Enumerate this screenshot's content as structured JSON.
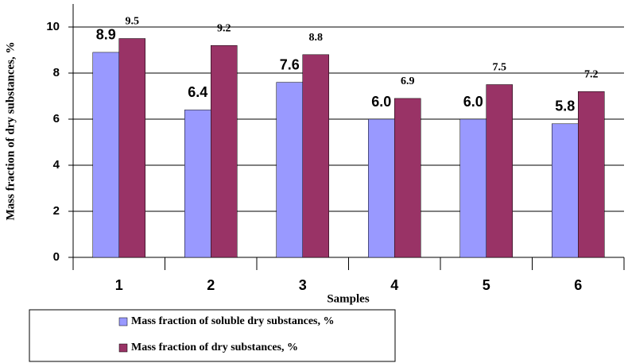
{
  "chart_data": {
    "type": "bar",
    "x_label": "Samples",
    "y_label": "Mass fraction of dry substances, %",
    "categories": [
      "1",
      "2",
      "3",
      "4",
      "5",
      "6"
    ],
    "series": [
      {
        "name": "Mass fraction of soluble dry substances, %",
        "color": "#9999ff",
        "values": [
          8.9,
          6.4,
          7.6,
          6.0,
          6.0,
          5.8
        ],
        "value_labels": [
          "8.9",
          "6.4",
          "7.6",
          "6.0",
          "6.0",
          "5.8"
        ]
      },
      {
        "name": "Mass fraction of dry substances, %",
        "color": "#993366",
        "values": [
          9.5,
          9.2,
          8.8,
          6.9,
          7.5,
          7.2
        ]
      }
    ],
    "ylim": [
      0,
      11
    ],
    "yticks": [
      0,
      2,
      4,
      6,
      8,
      10
    ],
    "grid": true,
    "legend": "bottom"
  }
}
